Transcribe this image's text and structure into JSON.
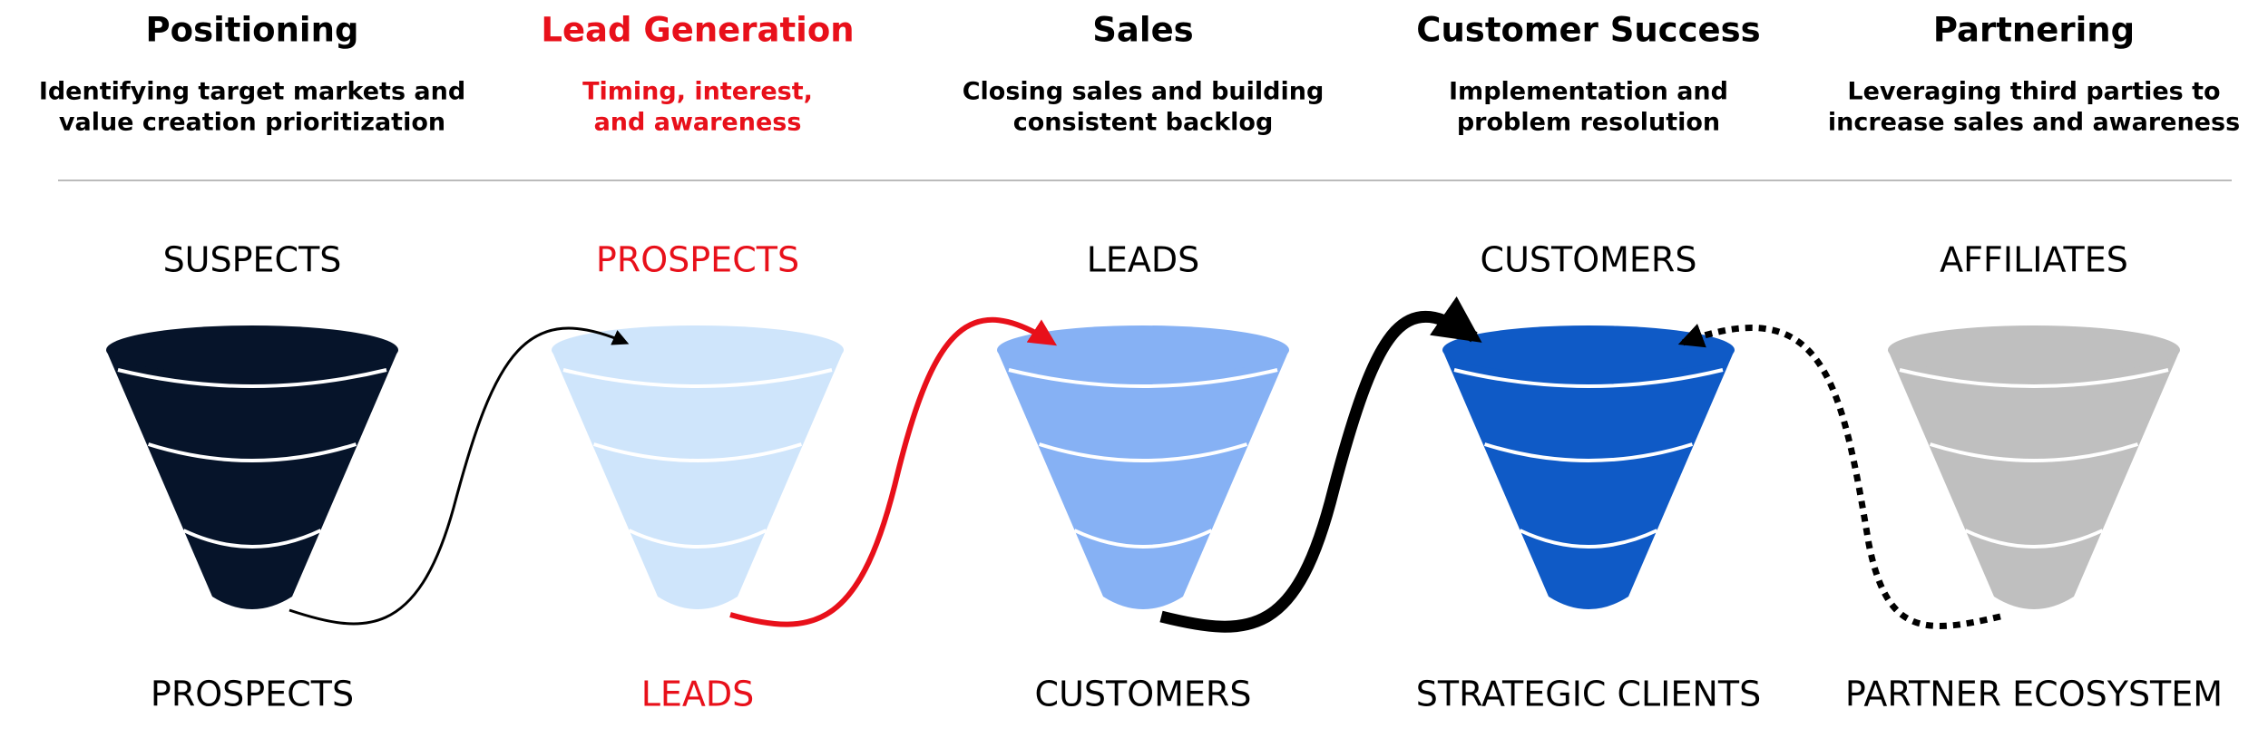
{
  "columns": [
    {
      "title": "Positioning",
      "subtitle": [
        "Identifying target markets and",
        "value creation prioritization"
      ],
      "top_label": "SUSPECTS",
      "bottom_label": "PROSPECTS",
      "color": "#06142a",
      "text_color": "#000000"
    },
    {
      "title": "Lead Generation",
      "subtitle": [
        "Timing, interest,",
        "and awareness"
      ],
      "top_label": "PROSPECTS",
      "bottom_label": "LEADS",
      "color": "#cfe5fb",
      "text_color": "#e8101a"
    },
    {
      "title": "Sales",
      "subtitle": [
        "Closing sales and building",
        "consistent backlog"
      ],
      "top_label": "LEADS",
      "bottom_label": "CUSTOMERS",
      "color": "#86b1f4",
      "text_color": "#000000"
    },
    {
      "title": "Customer Success",
      "subtitle": [
        "Implementation and",
        "problem resolution"
      ],
      "top_label": "CUSTOMERS",
      "bottom_label": "STRATEGIC CLIENTS",
      "color": "#0f5ac6",
      "text_color": "#000000"
    },
    {
      "title": "Partnering",
      "subtitle": [
        "Leveraging third parties to",
        "increase sales and awareness"
      ],
      "top_label": "AFFILIATES",
      "bottom_label": "PARTNER ECOSYSTEM",
      "color": "#bfbfbf",
      "text_color": "#000000"
    }
  ]
}
